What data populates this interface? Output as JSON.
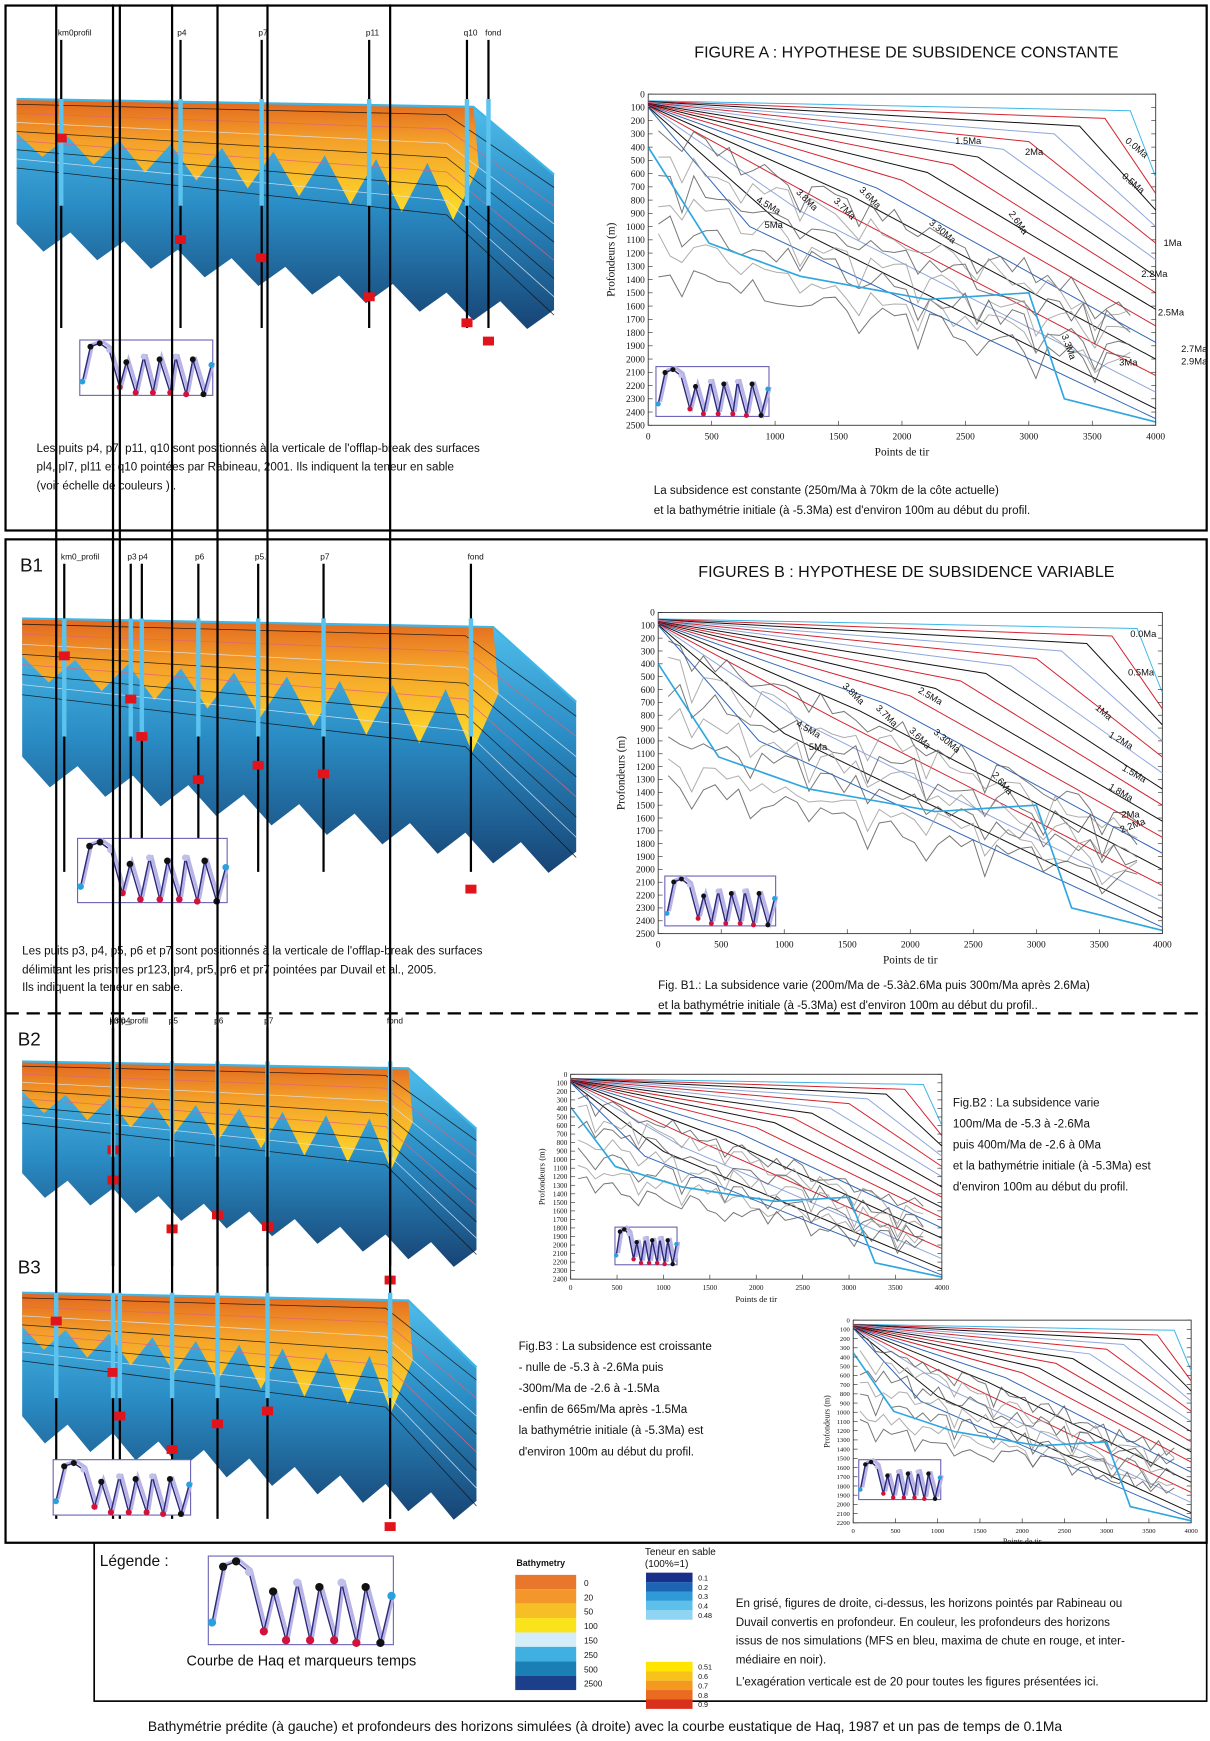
{
  "figure_a": {
    "title": "FIGURE A : HYPOTHESE DE SUBSIDENCE CONSTANTE",
    "wells": [
      "km0profil",
      "p4",
      "p7",
      "p11",
      "q10",
      "fond"
    ],
    "caption_left": [
      "Les puits p4,  p7, p11, q10 sont positionnés à la verticale de l'offlap-break des surfaces",
      "pl4, pl7, pl11 et q10 pointées par Rabineau, 2001. Ils indiquent la teneur en sable",
      "(voir échelle de couleurs ) ."
    ],
    "caption_right": [
      "La subsidence est constante (250m/Ma à 70km de la côte actuelle)",
      "et la bathymétrie initiale (à -5.3Ma) est d'environ 100m au début du profil."
    ],
    "chart": {
      "ylabel": "Profondeurs (m)",
      "xlabel": "Points de tir",
      "yticks": [
        0,
        100,
        200,
        300,
        400,
        500,
        600,
        700,
        800,
        900,
        1000,
        1100,
        1200,
        1300,
        1400,
        1500,
        1600,
        1700,
        1800,
        1900,
        2000,
        2100,
        2200,
        2300,
        2400,
        2500
      ],
      "xticks": [
        0,
        500,
        1000,
        1500,
        2000,
        2500,
        3000,
        3500,
        4000
      ],
      "curve_labels": [
        "1.5Ma",
        "2Ma",
        "0.0Ma",
        "0.5Ma",
        "1Ma",
        "2.2Ma",
        "2.5Ma",
        "2.7Ma",
        "2.9Ma",
        "3Ma",
        "3.3Ma",
        "2.6Ma",
        "3.30Ma",
        "3.6Ma",
        "3.7Ma",
        "3.8Ma",
        "4.5Ma",
        "5Ma"
      ]
    }
  },
  "figures_b": {
    "title": "FIGURES B : HYPOTHESE DE SUBSIDENCE VARIABLE",
    "b1": {
      "label": "B1",
      "wells": [
        "km0_profil",
        "p3",
        "p4",
        "p6",
        "p5.",
        "p7",
        "fond"
      ],
      "caption_left": [
        "Les puits p3,  p4, p5, p6 et p7 sont positionnés à la verticale de l'offlap-break des surfaces",
        "délimitant les prismes pr123, pr4, pr5, pr6 et pr7 pointées par Duvail et al., 2005.",
        "Ils indiquent la teneur en sable."
      ],
      "caption_right": [
        "Fig. B1.: La subsidence varie (200m/Ma de -5.3à2.6Ma puis 300m/Ma après 2.6Ma)",
        "et la bathymétrie initiale (à -5.3Ma) est d'environ 100m au début du profil.."
      ],
      "chart": {
        "ylabel": "Profondeurs (m)",
        "xlabel": "Points de tir",
        "yticks": [
          0,
          100,
          200,
          300,
          400,
          500,
          600,
          700,
          800,
          900,
          1000,
          1100,
          1200,
          1300,
          1400,
          1500,
          1600,
          1700,
          1800,
          1900,
          2000,
          2100,
          2200,
          2300,
          2400,
          2500
        ],
        "xticks": [
          0,
          500,
          1000,
          1500,
          2000,
          2500,
          3000,
          3500,
          4000
        ],
        "curve_labels": [
          "0.0Ma",
          "0.5Ma",
          "1Ma",
          "1.2Ma",
          "1.5Ma",
          "1.8Ma",
          "2Ma",
          "2.2Ma",
          "2.5Ma",
          "2.6Ma",
          "3.30Ma",
          "3.8Ma",
          "3.7Ma",
          "3.6Ma",
          "4.5Ma",
          "5Ma"
        ]
      }
    },
    "b2": {
      "label": "B2",
      "wells": [
        "km0_profil",
        "p3 p4",
        "p5",
        "p6",
        "p7",
        "fond"
      ],
      "caption": [
        "Fig.B2 : La subsidence varie",
        "100m/Ma de -5.3 à -2.6Ma",
        "puis 400m/Ma de -2.6 à 0Ma",
        "et la bathymétrie initiale (à -5.3Ma) est",
        "d'environ 100m au début du profil."
      ],
      "chart": {
        "ylabel": "Profondeurs (m)",
        "xlabel": "Points de tir",
        "yticks": [
          0,
          100,
          200,
          300,
          400,
          500,
          600,
          700,
          800,
          900,
          1000,
          1100,
          1200,
          1300,
          1400,
          1500,
          1600,
          1700,
          1800,
          1900,
          2000,
          2100,
          2200,
          2300,
          2400
        ],
        "xticks": [
          0,
          500,
          1000,
          1500,
          2000,
          2500,
          3000,
          3500,
          4000
        ]
      }
    },
    "b3": {
      "label": "B3",
      "caption": [
        "Fig.B3 : La subsidence est croissante",
        "- nulle de -5.3 à -2.6Ma puis",
        "-300m/Ma de -2.6 à -1.5Ma",
        "-enfin de 665m/Ma après -1.5Ma",
        "la bathymétrie initiale (à -5.3Ma) est",
        "d'environ 100m au début du profil."
      ],
      "chart": {
        "ylabel": "Profondeurs (m)",
        "xlabel": "Points de tir",
        "yticks": [
          0,
          100,
          200,
          300,
          400,
          500,
          600,
          700,
          800,
          900,
          1000,
          1100,
          1200,
          1300,
          1400,
          1500,
          1600,
          1700,
          1800,
          1900,
          2000,
          2100,
          2200
        ],
        "xticks": [
          0,
          500,
          1000,
          1500,
          2000,
          2500,
          3000,
          3500,
          4000
        ]
      }
    }
  },
  "legend": {
    "title": "Légende :",
    "haq_caption": "Courbe de Haq et marqueurs temps",
    "bathymetry": {
      "title": "Bathymetry",
      "values": [
        0,
        20,
        50,
        100,
        150,
        250,
        500,
        2500
      ]
    },
    "sand": {
      "title": "Teneur en sable",
      "subtitle": "(100%=1)",
      "values": [
        0.1,
        0.2,
        0.3,
        0.4,
        0.48,
        0.51,
        0.6,
        0.7,
        0.8,
        0.9
      ]
    },
    "notes": [
      "En grisé, figures de droite, ci-dessus,  les horizons pointés par Rabineau ou",
      "Duvail convertis en profondeur. En couleur, les profondeurs des horizons",
      "issus de nos simulations (MFS en bleu, maxima de chute en rouge,  et inter-",
      "médiaire en noir).",
      "L'exagération verticale est de 20 pour toutes les figures présentées ici."
    ]
  },
  "footer": "Bathymétrie prédite (à gauche)  et profondeurs des horizons simulées (à droite)  avec la courbe eustatique de Haq, 1987 et un pas de temps de 0.1Ma"
}
